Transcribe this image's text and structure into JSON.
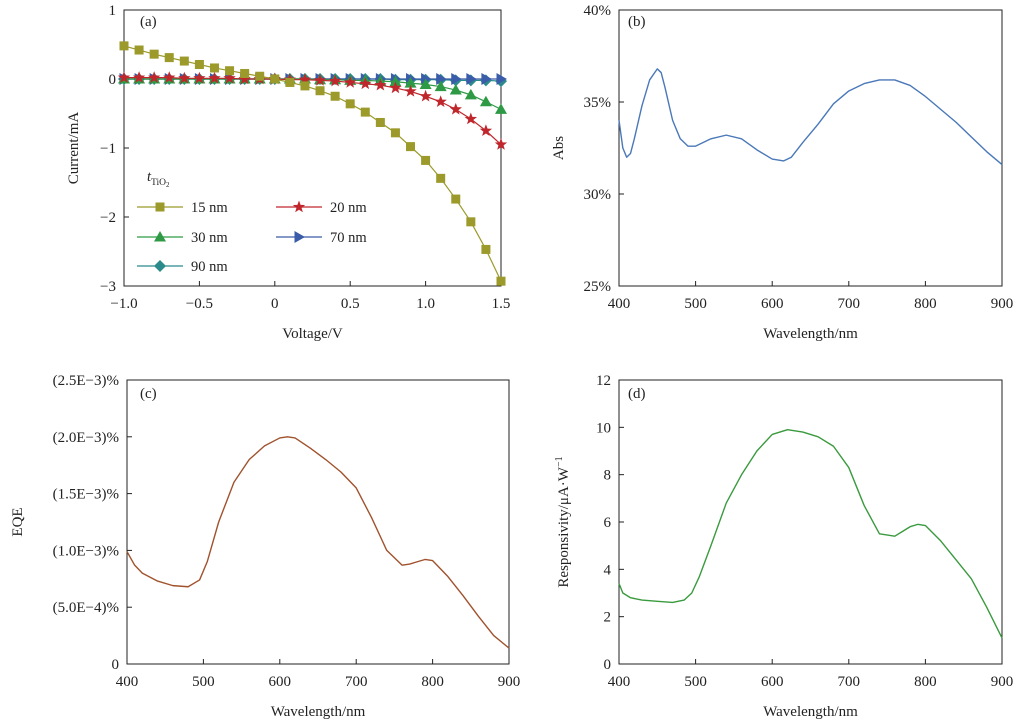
{
  "chart_data": [
    {
      "panel": "(a)",
      "type": "line",
      "xlabel": "Voltage/V",
      "ylabel": "Current/mA",
      "xlim": [
        -1.0,
        1.5
      ],
      "ylim": [
        -3,
        1
      ],
      "xticks": [
        "−1.0",
        "−0.5",
        "0",
        "0.5",
        "1.0",
        "1.5"
      ],
      "yticks": [
        "1",
        "0",
        "−1",
        "−2",
        "−3"
      ],
      "xtick_values": [
        -1.0,
        -0.5,
        0,
        0.5,
        1.0,
        1.5
      ],
      "ytick_values": [
        1,
        0,
        -1,
        -2,
        -3
      ],
      "legend_title_main": "t",
      "legend_title_sub": "TiO",
      "legend_title_subsub": "2",
      "legend_position": "lower-left",
      "x": [
        -1.0,
        -0.9,
        -0.8,
        -0.7,
        -0.6,
        -0.5,
        -0.4,
        -0.3,
        -0.2,
        -0.1,
        0.0,
        0.1,
        0.2,
        0.3,
        0.4,
        0.5,
        0.6,
        0.7,
        0.8,
        0.9,
        1.0,
        1.1,
        1.2,
        1.3,
        1.4,
        1.5
      ],
      "series": [
        {
          "name": "15 nm",
          "marker": "square",
          "color": "#9c9a2a",
          "values": [
            0.48,
            0.42,
            0.36,
            0.31,
            0.26,
            0.21,
            0.16,
            0.12,
            0.08,
            0.04,
            0.0,
            -0.05,
            -0.1,
            -0.17,
            -0.25,
            -0.36,
            -0.48,
            -0.63,
            -0.78,
            -0.98,
            -1.18,
            -1.44,
            -1.74,
            -2.07,
            -2.47,
            -2.93
          ]
        },
        {
          "name": "20 nm",
          "marker": "star",
          "color": "#c0272d",
          "values": [
            0.02,
            0.02,
            0.02,
            0.02,
            0.01,
            0.01,
            0.01,
            0.01,
            0.0,
            0.0,
            0.0,
            -0.01,
            -0.01,
            -0.02,
            -0.03,
            -0.05,
            -0.07,
            -0.09,
            -0.13,
            -0.18,
            -0.25,
            -0.33,
            -0.44,
            -0.58,
            -0.75,
            -0.95
          ]
        },
        {
          "name": "30 nm",
          "marker": "triangle",
          "color": "#2e9a45",
          "values": [
            0.0,
            0.0,
            0.0,
            0.0,
            0.0,
            0.0,
            0.0,
            0.0,
            0.0,
            0.0,
            0.0,
            0.0,
            0.0,
            -0.01,
            -0.01,
            -0.02,
            -0.02,
            -0.03,
            -0.04,
            -0.06,
            -0.08,
            -0.11,
            -0.16,
            -0.23,
            -0.33,
            -0.44
          ]
        },
        {
          "name": "70 nm",
          "marker": "triangle-right",
          "color": "#3b5ca8",
          "values": [
            0.0,
            0.0,
            0.0,
            0.0,
            0.0,
            0.0,
            0.0,
            0.0,
            0.0,
            0.0,
            0.0,
            0.0,
            0.0,
            0.0,
            0.0,
            0.0,
            0.0,
            0.0,
            0.0,
            0.0,
            0.0,
            0.0,
            0.0,
            0.0,
            0.0,
            0.0
          ]
        },
        {
          "name": "90 nm",
          "marker": "diamond",
          "color": "#2b8b8c",
          "values": [
            0.0,
            0.0,
            0.0,
            0.0,
            0.0,
            0.0,
            0.0,
            0.0,
            0.0,
            0.0,
            0.0,
            0.0,
            0.0,
            0.0,
            0.0,
            0.0,
            0.0,
            0.0,
            -0.01,
            -0.01,
            -0.01,
            -0.01,
            -0.02,
            -0.02,
            -0.02,
            -0.03
          ]
        }
      ]
    },
    {
      "panel": "(b)",
      "type": "line",
      "xlabel": "Wavelength/nm",
      "ylabel": "Abs",
      "xlim": [
        400,
        900
      ],
      "ylim": [
        25,
        40
      ],
      "xticks": [
        "400",
        "500",
        "600",
        "700",
        "800",
        "900"
      ],
      "yticks": [
        "40%",
        "35%",
        "30%",
        "25%"
      ],
      "xtick_values": [
        400,
        500,
        600,
        700,
        800,
        900
      ],
      "ytick_values": [
        40,
        35,
        30,
        25
      ],
      "series": [
        {
          "name": "",
          "color": "#4a78b8",
          "x": [
            400,
            405,
            410,
            415,
            420,
            430,
            440,
            450,
            455,
            460,
            470,
            480,
            490,
            500,
            520,
            540,
            560,
            580,
            600,
            615,
            625,
            640,
            660,
            680,
            700,
            720,
            740,
            760,
            780,
            800,
            820,
            840,
            860,
            880,
            900
          ],
          "values": [
            34.0,
            32.5,
            32.0,
            32.2,
            33.0,
            34.8,
            36.2,
            36.8,
            36.6,
            35.8,
            34.0,
            33.0,
            32.6,
            32.6,
            33.0,
            33.2,
            33.0,
            32.4,
            31.9,
            31.8,
            32.0,
            32.8,
            33.8,
            34.9,
            35.6,
            36.0,
            36.2,
            36.2,
            35.9,
            35.3,
            34.6,
            33.9,
            33.1,
            32.3,
            31.6
          ]
        }
      ]
    },
    {
      "panel": "(c)",
      "type": "line",
      "xlabel": "Wavelength/nm",
      "ylabel": "EQE",
      "xlim": [
        400,
        900
      ],
      "ylim": [
        0,
        0.0025
      ],
      "xticks": [
        "400",
        "500",
        "600",
        "700",
        "800",
        "900"
      ],
      "yticks": [
        "(2.5E−3)%",
        "(2.0E−3)%",
        "(1.5E−3)%",
        "(1.0E−3)%",
        "(5.0E−4)%",
        "0"
      ],
      "xtick_values": [
        400,
        500,
        600,
        700,
        800,
        900
      ],
      "ytick_values": [
        0.0025,
        0.002,
        0.0015,
        0.001,
        0.0005,
        0
      ],
      "series": [
        {
          "name": "",
          "color": "#a0522d",
          "x": [
            400,
            410,
            420,
            440,
            460,
            480,
            495,
            505,
            520,
            540,
            560,
            580,
            600,
            610,
            620,
            640,
            660,
            680,
            700,
            720,
            740,
            760,
            770,
            780,
            790,
            800,
            820,
            840,
            860,
            880,
            900
          ],
          "values": [
            0.00099,
            0.00087,
            0.0008,
            0.00073,
            0.00069,
            0.00068,
            0.00074,
            0.0009,
            0.00125,
            0.0016,
            0.0018,
            0.00192,
            0.00199,
            0.002,
            0.00199,
            0.0019,
            0.0018,
            0.00169,
            0.00155,
            0.00129,
            0.001,
            0.00087,
            0.00088,
            0.0009,
            0.00092,
            0.00091,
            0.00077,
            0.0006,
            0.00042,
            0.00025,
            0.00014
          ]
        }
      ]
    },
    {
      "panel": "(d)",
      "type": "line",
      "xlabel": "Wavelength/nm",
      "ylabel_main": "Responsivity/μA·W",
      "ylabel_sup": "−1",
      "xlim": [
        400,
        900
      ],
      "ylim": [
        0,
        12
      ],
      "xticks": [
        "400",
        "500",
        "600",
        "700",
        "800",
        "900"
      ],
      "yticks": [
        "12",
        "10",
        "8",
        "6",
        "4",
        "2",
        "0"
      ],
      "xtick_values": [
        400,
        500,
        600,
        700,
        800,
        900
      ],
      "ytick_values": [
        12,
        10,
        8,
        6,
        4,
        2,
        0
      ],
      "series": [
        {
          "name": "",
          "color": "#3a9a3e",
          "x": [
            400,
            405,
            415,
            430,
            450,
            470,
            485,
            495,
            505,
            520,
            540,
            560,
            580,
            600,
            620,
            640,
            660,
            680,
            700,
            720,
            740,
            760,
            770,
            780,
            790,
            800,
            820,
            840,
            860,
            880,
            900
          ],
          "values": [
            3.4,
            3.0,
            2.8,
            2.7,
            2.65,
            2.6,
            2.7,
            3.0,
            3.7,
            5.0,
            6.8,
            8.0,
            9.0,
            9.7,
            9.9,
            9.8,
            9.6,
            9.2,
            8.3,
            6.7,
            5.5,
            5.4,
            5.6,
            5.8,
            5.9,
            5.85,
            5.2,
            4.4,
            3.6,
            2.4,
            1.1
          ]
        }
      ]
    }
  ]
}
